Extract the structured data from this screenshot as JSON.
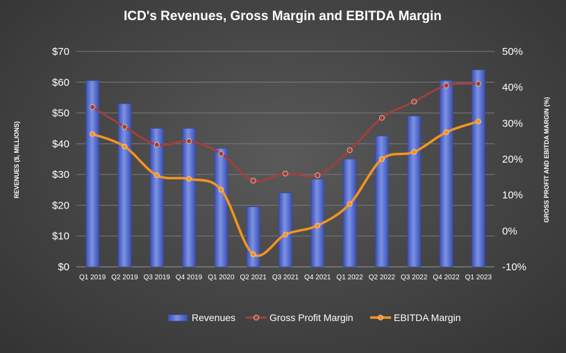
{
  "chart_data": {
    "type": "bar",
    "title": "ICD's Revenues, Gross Margin and EBITDA Margin",
    "ylabel": "REVENUES ($, MILLIONS)",
    "y2label": "GROSS PROFIT AND EBITDA MARGIN (%)",
    "categories": [
      "Q1 2019",
      "Q2 2019",
      "Q3 2019",
      "Q4 2019",
      "Q1 2020",
      "Q2 2021",
      "Q3 2021",
      "Q4 2021",
      "Q1 2022",
      "Q2 2022",
      "Q3 2022",
      "Q4 2022",
      "Q1 2023"
    ],
    "ylim": [
      0,
      70
    ],
    "y_ticks": [
      "$0",
      "$10",
      "$20",
      "$30",
      "$40",
      "$50",
      "$60",
      "$70"
    ],
    "y2lim": [
      -10,
      50
    ],
    "y2_ticks": [
      "-10%",
      "0%",
      "10%",
      "20%",
      "30%",
      "40%",
      "50%"
    ],
    "grid": true,
    "legend_position": "bottom",
    "colors": {
      "bar": "#4a64c8",
      "bar_light": "#7c92e6",
      "gross": "#a0403e",
      "ebitda": "#f39422"
    },
    "series": [
      {
        "name": "Revenues",
        "kind": "bar",
        "axis": "left",
        "values": [
          60.5,
          53,
          45,
          45,
          38.5,
          19.5,
          24,
          28.5,
          35,
          42.5,
          49,
          60.5,
          64
        ]
      },
      {
        "name": "Gross Profit Margin",
        "kind": "line",
        "axis": "right",
        "values": [
          34.5,
          29,
          24,
          25,
          21.5,
          14,
          16,
          15.5,
          22.5,
          31.5,
          36,
          40.5,
          41
        ]
      },
      {
        "name": "EBITDA Margin",
        "kind": "line",
        "axis": "right",
        "values": [
          27,
          23.5,
          15.5,
          14.5,
          11.5,
          -6.5,
          -1,
          1.5,
          7.5,
          20,
          22,
          27.5,
          30.5
        ]
      }
    ]
  }
}
